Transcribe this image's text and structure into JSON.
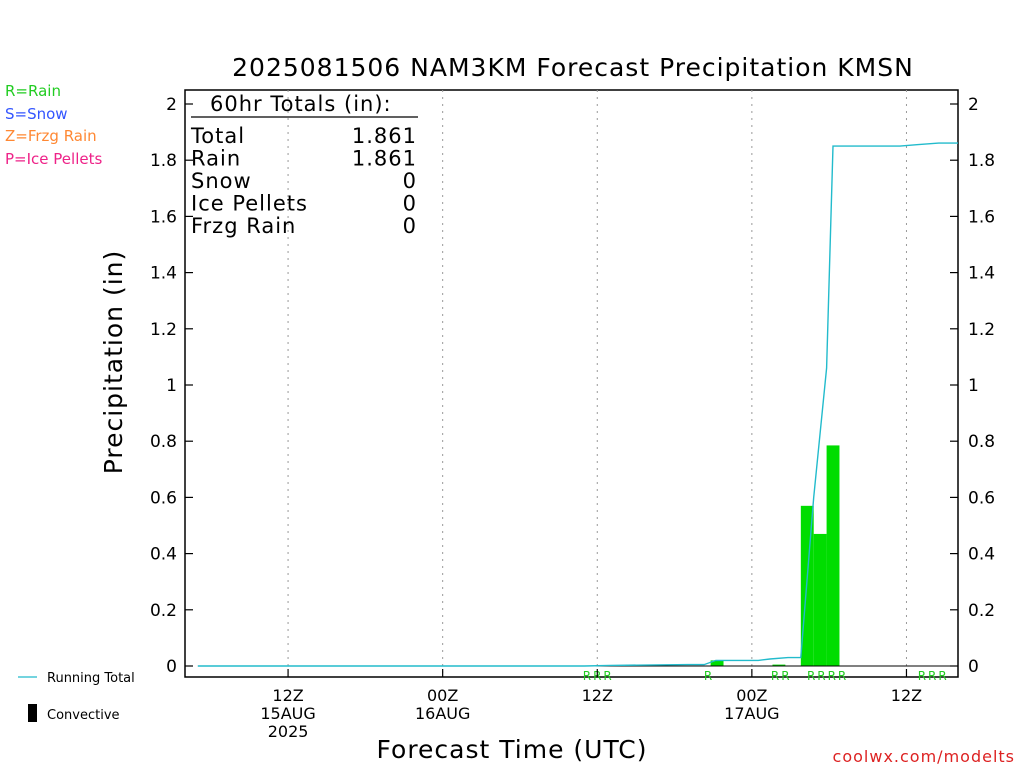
{
  "chart_data": {
    "type": "bar",
    "title": "2025081506 NAM3KM Forecast Precipitation KMSN",
    "xlabel": "Forecast Time (UTC)",
    "ylabel": "Precipitation (in)",
    "ylim": [
      0,
      2.05
    ],
    "y_ticks": [
      "0",
      "0.2",
      "0.4",
      "0.6",
      "0.8",
      "1",
      "1.2",
      "1.4",
      "1.6",
      "1.8",
      "2"
    ],
    "x_range_hours": [
      -2,
      58
    ],
    "x_ticks": [
      {
        "hour": 6,
        "line1": "12Z",
        "line2": "15AUG",
        "line3": "2025"
      },
      {
        "hour": 18,
        "line1": "00Z",
        "line2": "16AUG",
        "line3": ""
      },
      {
        "hour": 30,
        "line1": "12Z",
        "line2": "",
        "line3": ""
      },
      {
        "hour": 42,
        "line1": "00Z",
        "line2": "17AUG",
        "line3": ""
      },
      {
        "hour": 54,
        "line1": "12Z",
        "line2": "",
        "line3": ""
      }
    ],
    "grid": true,
    "legend": {
      "types": [
        {
          "label": "R=Rain",
          "color": "#22cc22"
        },
        {
          "label": "S=Snow",
          "color": "#3355ff"
        },
        {
          "label": "Z=Frzg Rain",
          "color": "#ff8833"
        },
        {
          "label": "P=Ice Pellets",
          "color": "#ee2288"
        }
      ],
      "running_total": "Running Total",
      "convective": "Convective"
    },
    "totals_box": {
      "header": "60hr Totals (in):",
      "rows": [
        {
          "label": "Total",
          "value": "1.861"
        },
        {
          "label": "Rain",
          "value": "1.861"
        },
        {
          "label": "Snow",
          "value": "0"
        },
        {
          "label": "Ice Pellets",
          "value": "0"
        },
        {
          "label": "Frzg Rain",
          "value": "0"
        }
      ]
    },
    "series": [
      {
        "name": "Rain",
        "color": "#00dd00",
        "bars": [
          {
            "start": 38.8,
            "end": 39.8,
            "value": 0.02
          },
          {
            "start": 43.6,
            "end": 44.6,
            "value": 0.005
          },
          {
            "start": 45.8,
            "end": 46.8,
            "value": 0.57
          },
          {
            "start": 46.8,
            "end": 47.8,
            "value": 0.47
          },
          {
            "start": 47.8,
            "end": 48.8,
            "value": 0.785
          }
        ]
      },
      {
        "name": "Running Total",
        "color": "#22bbcc",
        "points": [
          [
            -1,
            0
          ],
          [
            29,
            0
          ],
          [
            31,
            0.002
          ],
          [
            37,
            0.005
          ],
          [
            38.3,
            0.005
          ],
          [
            39.2,
            0.02
          ],
          [
            42.5,
            0.02
          ],
          [
            43.4,
            0.025
          ],
          [
            44.8,
            0.03
          ],
          [
            45.8,
            0.03
          ],
          [
            46.8,
            0.6
          ],
          [
            47.8,
            1.06
          ],
          [
            48.3,
            1.85
          ],
          [
            53.5,
            1.85
          ],
          [
            54.8,
            1.855
          ],
          [
            56.5,
            1.861
          ],
          [
            58,
            1.861
          ]
        ]
      }
    ],
    "precip_type_labels": [
      {
        "hour": 29.2,
        "text": "R"
      },
      {
        "hour": 30.0,
        "text": "R"
      },
      {
        "hour": 30.8,
        "text": "R"
      },
      {
        "hour": 38.6,
        "text": "R"
      },
      {
        "hour": 43.8,
        "text": "R"
      },
      {
        "hour": 44.6,
        "text": "R"
      },
      {
        "hour": 46.6,
        "text": "R"
      },
      {
        "hour": 47.4,
        "text": "R"
      },
      {
        "hour": 48.2,
        "text": "R"
      },
      {
        "hour": 49.0,
        "text": "R"
      },
      {
        "hour": 55.2,
        "text": "R"
      },
      {
        "hour": 56.0,
        "text": "R"
      },
      {
        "hour": 56.8,
        "text": "R"
      }
    ],
    "credit": "coolwx.com/modelts"
  }
}
